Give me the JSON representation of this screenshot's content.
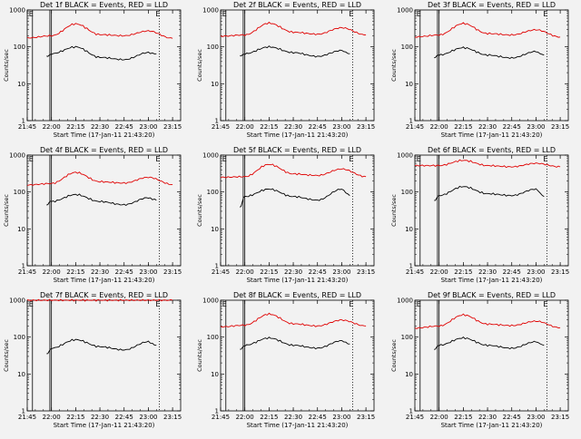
{
  "window": {
    "background": "#f2f2f2"
  },
  "colors": {
    "events": "#000000",
    "lld": "#e00000",
    "axis": "#000000"
  },
  "chart_data": [
    {
      "type": "line",
      "title": "Det 1f BLACK = Events, RED = LLD",
      "xlabel": "Start Time (17-Jan-11 21:43:20)",
      "ylabel": "Counts/sec",
      "yscale": "log",
      "ylim": [
        1,
        1000
      ],
      "xlim": [
        "21:45",
        "23:20"
      ],
      "x_ticks": [
        "21:45",
        "22:00",
        "22:15",
        "22:30",
        "22:45",
        "23:00",
        "23:15"
      ],
      "y_ticks": [
        "1",
        "10",
        "100",
        "1000"
      ],
      "markers": [
        {
          "label": "E",
          "x": "21:46"
        },
        {
          "label": "E",
          "x": "23:00"
        }
      ],
      "series": [
        {
          "color": "red",
          "x": [
            "21:45",
            "22:00",
            "22:15",
            "22:30",
            "22:45",
            "23:00",
            "23:15"
          ],
          "values": [
            175,
            200,
            420,
            215,
            200,
            270,
            170
          ]
        },
        {
          "color": "black",
          "x": [
            "21:57",
            "22:00",
            "22:15",
            "22:30",
            "22:45",
            "23:00",
            "23:05"
          ],
          "values": [
            55,
            65,
            100,
            52,
            45,
            70,
            65
          ]
        }
      ]
    },
    {
      "type": "line",
      "title": "Det 2f BLACK = Events, RED = LLD",
      "xlabel": "Start Time (17-Jan-11 21:43:20)",
      "ylabel": "Counts/sec",
      "yscale": "log",
      "ylim": [
        1,
        1000
      ],
      "xlim": [
        "21:45",
        "23:20"
      ],
      "x_ticks": [
        "21:45",
        "22:00",
        "22:15",
        "22:30",
        "22:45",
        "23:00",
        "23:15"
      ],
      "y_ticks": [
        "1",
        "10",
        "100",
        "1000"
      ],
      "markers": [
        {
          "label": "E",
          "x": "21:46"
        },
        {
          "label": "E",
          "x": "23:00"
        }
      ],
      "series": [
        {
          "color": "red",
          "x": [
            "21:45",
            "22:00",
            "22:15",
            "22:30",
            "22:45",
            "23:00",
            "23:15"
          ],
          "values": [
            195,
            210,
            440,
            250,
            220,
            330,
            210
          ]
        },
        {
          "color": "black",
          "x": [
            "21:57",
            "22:00",
            "22:15",
            "22:30",
            "22:45",
            "23:00",
            "23:05"
          ],
          "values": [
            55,
            65,
            100,
            70,
            55,
            80,
            65
          ]
        }
      ]
    },
    {
      "type": "line",
      "title": "Det 3f BLACK = Events, RED = LLD",
      "xlabel": "Start Time (17-Jan-11 21:43:20)",
      "ylabel": "Counts/sec",
      "yscale": "log",
      "ylim": [
        1,
        1000
      ],
      "xlim": [
        "21:45",
        "23:20"
      ],
      "x_ticks": [
        "21:45",
        "22:00",
        "22:15",
        "22:30",
        "22:45",
        "23:00",
        "23:15"
      ],
      "y_ticks": [
        "1",
        "10",
        "100",
        "1000"
      ],
      "markers": [
        {
          "label": "E",
          "x": "21:46"
        },
        {
          "label": "E",
          "x": "23:00"
        }
      ],
      "series": [
        {
          "color": "red",
          "x": [
            "21:45",
            "22:00",
            "22:15",
            "22:30",
            "22:45",
            "23:00",
            "23:15"
          ],
          "values": [
            185,
            210,
            430,
            230,
            210,
            290,
            185
          ]
        },
        {
          "color": "black",
          "x": [
            "21:57",
            "22:00",
            "22:15",
            "22:30",
            "22:45",
            "23:00",
            "23:05"
          ],
          "values": [
            50,
            60,
            95,
            60,
            50,
            75,
            60
          ]
        }
      ]
    },
    {
      "type": "line",
      "title": "Det 4f BLACK = Events, RED = LLD",
      "xlabel": "Start Time (17-Jan-11 21:43:20)",
      "ylabel": "Counts/sec",
      "yscale": "log",
      "ylim": [
        1,
        1000
      ],
      "xlim": [
        "21:45",
        "23:20"
      ],
      "x_ticks": [
        "21:45",
        "22:00",
        "22:15",
        "22:30",
        "22:45",
        "23:00",
        "23:15"
      ],
      "y_ticks": [
        "1",
        "10",
        "100",
        "1000"
      ],
      "markers": [
        {
          "label": "E",
          "x": "21:46"
        },
        {
          "label": "E",
          "x": "23:00"
        }
      ],
      "series": [
        {
          "color": "red",
          "x": [
            "21:45",
            "22:00",
            "22:15",
            "22:30",
            "22:45",
            "23:00",
            "23:15"
          ],
          "values": [
            155,
            170,
            340,
            190,
            175,
            250,
            160
          ]
        },
        {
          "color": "black",
          "x": [
            "21:57",
            "22:00",
            "22:15",
            "22:30",
            "22:45",
            "23:00",
            "23:05"
          ],
          "values": [
            45,
            55,
            85,
            55,
            45,
            70,
            60
          ]
        }
      ]
    },
    {
      "type": "line",
      "title": "Det 5f BLACK = Events, RED = LLD",
      "xlabel": "Start Time (17-Jan-11 21:43:20)",
      "ylabel": "Counts/sec",
      "yscale": "log",
      "ylim": [
        1,
        1000
      ],
      "xlim": [
        "21:45",
        "23:20"
      ],
      "x_ticks": [
        "21:45",
        "22:00",
        "22:15",
        "22:30",
        "22:45",
        "23:00",
        "23:15"
      ],
      "y_ticks": [
        "1",
        "10",
        "100",
        "1000"
      ],
      "markers": [
        {
          "label": "E",
          "x": "21:46"
        },
        {
          "label": "E",
          "x": "23:00"
        }
      ],
      "series": [
        {
          "color": "red",
          "x": [
            "21:45",
            "22:00",
            "22:15",
            "22:30",
            "22:45",
            "23:00",
            "23:15"
          ],
          "values": [
            250,
            260,
            560,
            310,
            280,
            420,
            260
          ]
        },
        {
          "color": "black",
          "x": [
            "21:57",
            "22:00",
            "22:15",
            "22:30",
            "22:45",
            "23:00",
            "23:05"
          ],
          "values": [
            40,
            75,
            120,
            75,
            60,
            120,
            80
          ]
        }
      ]
    },
    {
      "type": "line",
      "title": "Det 6f BLACK = Events, RED = LLD",
      "xlabel": "Start Time (17-Jan-11 21:43:20)",
      "ylabel": "Counts/sec",
      "yscale": "log",
      "ylim": [
        1,
        1000
      ],
      "xlim": [
        "21:45",
        "23:20"
      ],
      "x_ticks": [
        "21:45",
        "22:00",
        "22:15",
        "22:30",
        "22:45",
        "23:00",
        "23:15"
      ],
      "y_ticks": [
        "1",
        "10",
        "100",
        "1000"
      ],
      "markers": [
        {
          "label": "E",
          "x": "21:46"
        },
        {
          "label": "E",
          "x": "23:00"
        }
      ],
      "series": [
        {
          "color": "red",
          "x": [
            "21:45",
            "22:00",
            "22:15",
            "22:30",
            "22:45",
            "23:00",
            "23:15"
          ],
          "values": [
            520,
            520,
            720,
            520,
            480,
            600,
            480
          ]
        },
        {
          "color": "black",
          "x": [
            "21:57",
            "22:00",
            "22:15",
            "22:30",
            "22:45",
            "23:00",
            "23:05"
          ],
          "values": [
            60,
            80,
            140,
            90,
            80,
            120,
            75
          ]
        }
      ]
    },
    {
      "type": "line",
      "title": "Det 7f BLACK = Events, RED = LLD",
      "xlabel": "Start Time (17-Jan-11 21:43:20)",
      "ylabel": "Counts/sec",
      "yscale": "log",
      "ylim": [
        1,
        1000
      ],
      "xlim": [
        "21:45",
        "23:20"
      ],
      "x_ticks": [
        "21:45",
        "22:00",
        "22:15",
        "22:30",
        "22:45",
        "23:00",
        "23:15"
      ],
      "y_ticks": [
        "1",
        "10",
        "100",
        "1000"
      ],
      "markers": [
        {
          "label": "E",
          "x": "21:46"
        },
        {
          "label": "E",
          "x": "23:00"
        }
      ],
      "series": [
        {
          "color": "red",
          "x": [
            "21:45",
            "22:00",
            "22:15",
            "22:30",
            "22:45",
            "23:00",
            "23:15"
          ],
          "values": [
            1000,
            1000,
            1000,
            1000,
            1000,
            1000,
            1000
          ]
        },
        {
          "color": "black",
          "x": [
            "21:57",
            "22:00",
            "22:15",
            "22:30",
            "22:45",
            "23:00",
            "23:05"
          ],
          "values": [
            35,
            50,
            85,
            55,
            45,
            75,
            60
          ]
        }
      ]
    },
    {
      "type": "line",
      "title": "Det 8f BLACK = Events, RED = LLD",
      "xlabel": "Start Time (17-Jan-11 21:43:20)",
      "ylabel": "Counts/sec",
      "yscale": "log",
      "ylim": [
        1,
        1000
      ],
      "xlim": [
        "21:45",
        "23:20"
      ],
      "x_ticks": [
        "21:45",
        "22:00",
        "22:15",
        "22:30",
        "22:45",
        "23:00",
        "23:15"
      ],
      "y_ticks": [
        "1",
        "10",
        "100",
        "1000"
      ],
      "markers": [
        {
          "label": "E",
          "x": "21:46"
        },
        {
          "label": "E",
          "x": "23:00"
        }
      ],
      "series": [
        {
          "color": "red",
          "x": [
            "21:45",
            "22:00",
            "22:15",
            "22:30",
            "22:45",
            "23:00",
            "23:15"
          ],
          "values": [
            190,
            210,
            420,
            230,
            200,
            290,
            200
          ]
        },
        {
          "color": "black",
          "x": [
            "21:57",
            "22:00",
            "22:15",
            "22:30",
            "22:45",
            "23:00",
            "23:05"
          ],
          "values": [
            45,
            60,
            95,
            60,
            50,
            80,
            65
          ]
        }
      ]
    },
    {
      "type": "line",
      "title": "Det 9f BLACK = Events, RED = LLD",
      "xlabel": "Start Time (17-Jan-11 21:43:20)",
      "ylabel": "Counts/sec",
      "yscale": "log",
      "ylim": [
        1,
        1000
      ],
      "xlim": [
        "21:45",
        "23:20"
      ],
      "x_ticks": [
        "21:45",
        "22:00",
        "22:15",
        "22:30",
        "22:45",
        "23:00",
        "23:15"
      ],
      "y_ticks": [
        "1",
        "10",
        "100",
        "1000"
      ],
      "markers": [
        {
          "label": "E",
          "x": "21:46"
        },
        {
          "label": "E",
          "x": "23:00"
        }
      ],
      "series": [
        {
          "color": "red",
          "x": [
            "21:45",
            "22:00",
            "22:15",
            "22:30",
            "22:45",
            "23:00",
            "23:15"
          ],
          "values": [
            175,
            200,
            400,
            225,
            205,
            270,
            180
          ]
        },
        {
          "color": "black",
          "x": [
            "21:57",
            "22:00",
            "22:15",
            "22:30",
            "22:45",
            "23:00",
            "23:05"
          ],
          "values": [
            45,
            60,
            95,
            60,
            50,
            75,
            60
          ]
        }
      ]
    }
  ]
}
